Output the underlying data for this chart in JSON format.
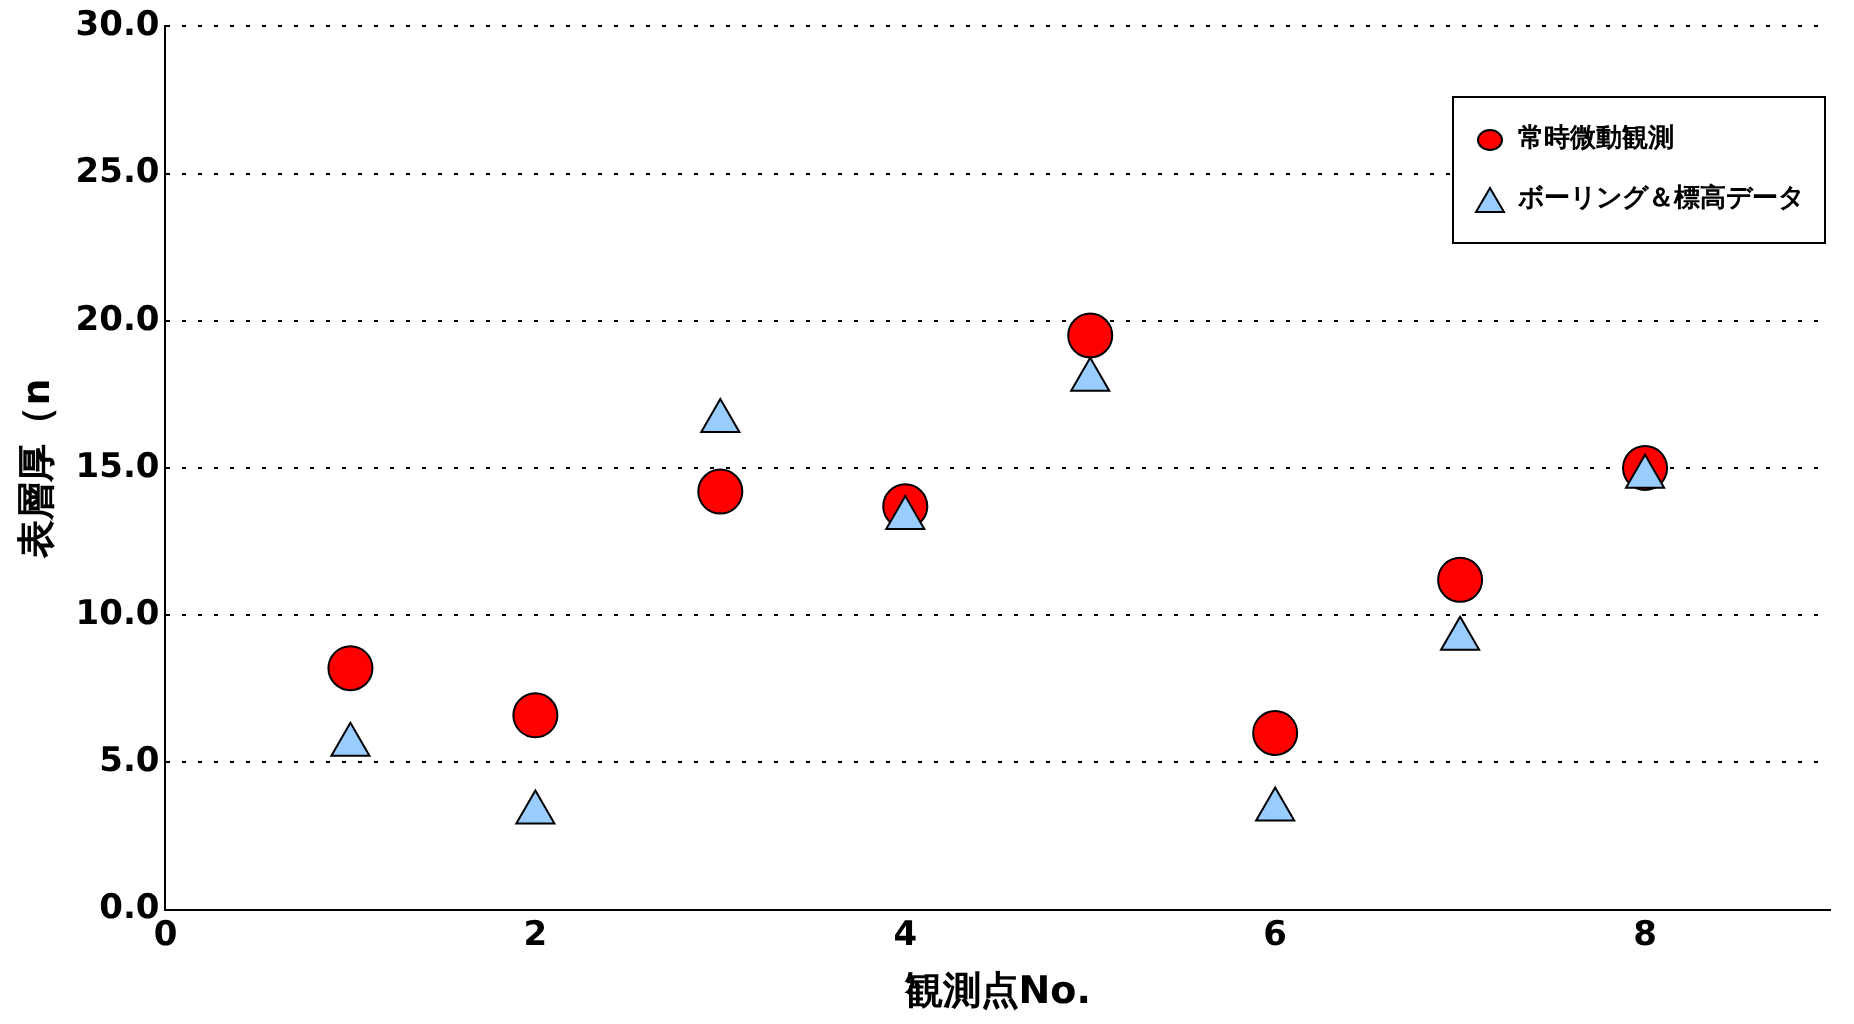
{
  "chart_data": {
    "type": "scatter",
    "xlabel": "観測点No.",
    "ylabel": "表層厚（n",
    "xlim": [
      0,
      9
    ],
    "xticks": [
      0,
      2,
      4,
      6,
      8
    ],
    "ylim": [
      0,
      30
    ],
    "yticks": [
      {
        "value": 0,
        "label": "0.0"
      },
      {
        "value": 5,
        "label": "5.0"
      },
      {
        "value": 10,
        "label": "10.0"
      },
      {
        "value": 15,
        "label": "15.0"
      },
      {
        "value": 20,
        "label": "20.0"
      },
      {
        "value": 25,
        "label": "25.0"
      },
      {
        "value": 30,
        "label": "30.0"
      }
    ],
    "grid": "y",
    "legend": "top right",
    "series": [
      {
        "name": "常時微動観測",
        "color": "#ff0000",
        "marker": "circle",
        "x": [
          1,
          2,
          3,
          4,
          5,
          6,
          7,
          8
        ],
        "values": [
          8.2,
          6.6,
          14.2,
          13.7,
          19.5,
          6.0,
          11.2,
          15.0
        ]
      },
      {
        "name": "ボーリング＆標高データ",
        "color": "#99ccff",
        "marker": "triangle",
        "x": [
          1,
          2,
          3,
          4,
          5,
          6,
          7,
          8
        ],
        "values": [
          5.6,
          3.3,
          16.6,
          13.3,
          18.0,
          3.4,
          9.2,
          14.7
        ]
      }
    ]
  }
}
